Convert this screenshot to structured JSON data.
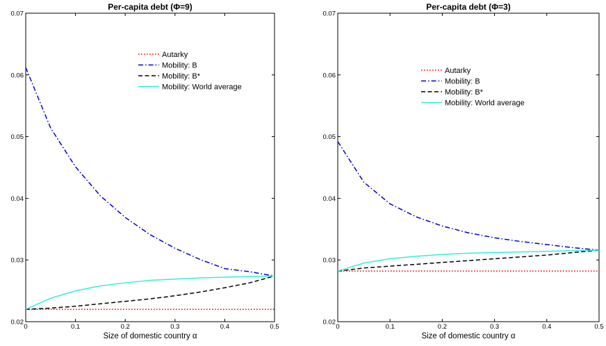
{
  "chart_data": [
    {
      "type": "line",
      "title": "Per-capita debt (Φ=9)",
      "xlabel": "Size of domestic country α",
      "ylabel": "",
      "xlim": [
        0,
        0.5
      ],
      "ylim": [
        0.02,
        0.07
      ],
      "xticks": [
        0,
        0.1,
        0.2,
        0.3,
        0.4,
        0.5
      ],
      "xtick_labels": [
        "0",
        "0.1",
        "0.2",
        "0.3",
        "0.4",
        "0.5"
      ],
      "yticks": [
        0.02,
        0.03,
        0.04,
        0.05,
        0.06,
        0.07
      ],
      "ytick_labels": [
        "0.02",
        "0.03",
        "0.04",
        "0.05",
        "0.06",
        "0.07"
      ],
      "grid": false,
      "legend_position": "top-right",
      "x": [
        0,
        0.05,
        0.1,
        0.15,
        0.2,
        0.25,
        0.3,
        0.35,
        0.4,
        0.45,
        0.5
      ],
      "series": [
        {
          "name": "Autarky",
          "color": "#ff0000",
          "dash": "dotted",
          "values": [
            0.022,
            0.022,
            0.022,
            0.022,
            0.022,
            0.022,
            0.022,
            0.022,
            0.022,
            0.022,
            0.022
          ]
        },
        {
          "name": "Mobility: B",
          "color": "#0000cc",
          "dash": "dashdot",
          "values": [
            0.0612,
            0.0514,
            0.0451,
            0.0404,
            0.0369,
            0.0341,
            0.0319,
            0.0301,
            0.0286,
            0.0281,
            0.0274
          ]
        },
        {
          "name": "Mobility: B*",
          "color": "#000000",
          "dash": "dashed",
          "values": [
            0.022,
            0.0222,
            0.0225,
            0.0229,
            0.0233,
            0.0237,
            0.0242,
            0.0248,
            0.0255,
            0.0263,
            0.0274
          ]
        },
        {
          "name": "Mobility: World average",
          "color": "#33eedd",
          "dash": "solid",
          "values": [
            0.022,
            0.0238,
            0.025,
            0.0258,
            0.0263,
            0.0267,
            0.0269,
            0.0271,
            0.0272,
            0.0273,
            0.0274
          ]
        }
      ]
    },
    {
      "type": "line",
      "title": "Per-capita debt (Φ=3)",
      "xlabel": "Size of domestic country α",
      "ylabel": "",
      "xlim": [
        0,
        0.5
      ],
      "ylim": [
        0.02,
        0.07
      ],
      "xticks": [
        0,
        0.1,
        0.2,
        0.3,
        0.4,
        0.5
      ],
      "xtick_labels": [
        "0",
        "0.1",
        "0.2",
        "0.3",
        "0.4",
        "0.5"
      ],
      "yticks": [
        0.02,
        0.03,
        0.04,
        0.05,
        0.06,
        0.07
      ],
      "ytick_labels": [
        "0.02",
        "0.03",
        "0.04",
        "0.05",
        "0.06",
        "0.07"
      ],
      "grid": false,
      "legend_position": "top-right",
      "x": [
        0,
        0.05,
        0.1,
        0.15,
        0.2,
        0.25,
        0.3,
        0.35,
        0.4,
        0.45,
        0.5
      ],
      "series": [
        {
          "name": "Autarky",
          "color": "#ff0000",
          "dash": "dotted",
          "values": [
            0.0282,
            0.0282,
            0.0282,
            0.0282,
            0.0282,
            0.0282,
            0.0282,
            0.0282,
            0.0282,
            0.0282,
            0.0282
          ]
        },
        {
          "name": "Mobility: B",
          "color": "#0000cc",
          "dash": "dashdot",
          "values": [
            0.0492,
            0.0426,
            0.0391,
            0.037,
            0.0355,
            0.0344,
            0.0336,
            0.033,
            0.0325,
            0.032,
            0.0316
          ]
        },
        {
          "name": "Mobility: B*",
          "color": "#000000",
          "dash": "dashed",
          "values": [
            0.0282,
            0.0287,
            0.029,
            0.0293,
            0.0296,
            0.0299,
            0.0302,
            0.0305,
            0.0308,
            0.0312,
            0.0316
          ]
        },
        {
          "name": "Mobility: World average",
          "color": "#33eedd",
          "dash": "solid",
          "values": [
            0.0282,
            0.0295,
            0.0302,
            0.0306,
            0.0309,
            0.0311,
            0.0312,
            0.0313,
            0.0314,
            0.0315,
            0.0316
          ]
        }
      ]
    }
  ]
}
